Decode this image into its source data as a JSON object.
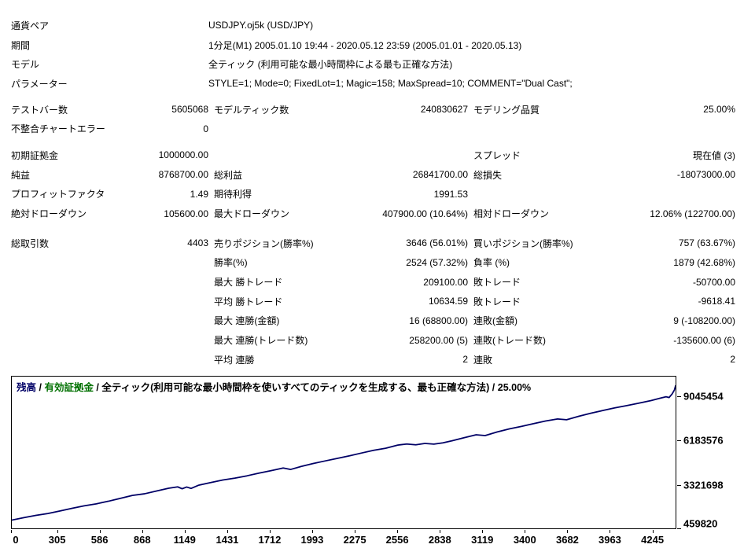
{
  "report": {
    "info_rows": [
      {
        "label": "通貨ペア",
        "value": "USDJPY.oj5k (USD/JPY)"
      },
      {
        "label": "期間",
        "value": "1分足(M1) 2005.01.10 19:44 - 2020.05.12 23:59 (2005.01.01 - 2020.05.13)"
      },
      {
        "label": "モデル",
        "value": "全ティック (利用可能な最小時間枠による最も正確な方法)"
      },
      {
        "label": "パラメーター",
        "value": "STYLE=1; Mode=0; FixedLot=1; Magic=158; MaxSpread=10; COMMENT=\"Dual Cast\";"
      }
    ],
    "sections": [
      {
        "rows": [
          [
            "テストバー数",
            "5605068",
            "モデルティック数",
            "240830627",
            "モデリング品質",
            "25.00%"
          ],
          [
            "不整合チャートエラー",
            "0",
            "",
            "",
            "",
            ""
          ]
        ]
      },
      {
        "rows": [
          [
            "初期証拠金",
            "1000000.00",
            "",
            "",
            "スプレッド",
            "現在値 (3)"
          ],
          [
            "純益",
            "8768700.00",
            "総利益",
            "26841700.00",
            "総損失",
            "-18073000.00"
          ],
          [
            "プロフィットファクタ",
            "1.49",
            "期待利得",
            "1991.53",
            "",
            ""
          ],
          [
            "絶対ドローダウン",
            "105600.00",
            "最大ドローダウン",
            "407900.00 (10.64%)",
            "相対ドローダウン",
            "12.06% (122700.00)"
          ]
        ]
      },
      {
        "rows": [
          [
            "総取引数",
            "4403",
            "売りポジション(勝率%)",
            "3646 (56.01%)",
            "買いポジション(勝率%)",
            "757 (63.67%)"
          ],
          [
            "",
            "",
            "勝率(%)",
            "2524 (57.32%)",
            "負率 (%)",
            "1879 (42.68%)"
          ],
          [
            "",
            "",
            "最大 勝トレード",
            "209100.00",
            "敗トレード",
            "-50700.00"
          ],
          [
            "",
            "",
            "平均 勝トレード",
            "10634.59",
            "敗トレード",
            "-9618.41"
          ],
          [
            "",
            "",
            "最大 連勝(金額)",
            "16 (68800.00)",
            "連敗(金額)",
            "9 (-108200.00)"
          ],
          [
            "",
            "",
            "最大 連勝(トレード数)",
            "258200.00 (5)",
            "連敗(トレード数)",
            "-135600.00 (6)"
          ],
          [
            "",
            "",
            "平均 連勝",
            "2",
            "連敗",
            "2"
          ]
        ]
      }
    ]
  },
  "chart": {
    "legend": {
      "balance_label": "残高",
      "equity_label": "有効証拠金",
      "separator": " / ",
      "description": "全ティック(利用可能な最小時間枠を使いすべてのティックを生成する、最も正確な方法)",
      "quality": "25.00%"
    },
    "colors": {
      "balance_line": "#000066",
      "equity_label": "#007000",
      "border": "#000000"
    }
  },
  "chart_data": {
    "type": "line",
    "title": "残高 / 有効証拠金 / 全ティック(利用可能な最小時間枠を使いすべてのティックを生成する、最も正確な方法) / 25.00%",
    "xlabel": "",
    "ylabel": "",
    "xlim": [
      0,
      4403
    ],
    "ylim": [
      459820,
      10376000
    ],
    "grid": false,
    "legend_position": "top-left",
    "x_ticks": [
      0,
      305,
      586,
      868,
      1149,
      1431,
      1712,
      1993,
      2275,
      2556,
      2838,
      3119,
      3400,
      3682,
      3963,
      4245
    ],
    "y_ticks": [
      9045454,
      6183576,
      3321698,
      459820
    ],
    "series": [
      {
        "name": "残高",
        "color": "#000066",
        "points": [
          [
            0,
            1000000
          ],
          [
            80,
            1160000
          ],
          [
            160,
            1310000
          ],
          [
            240,
            1430000
          ],
          [
            320,
            1600000
          ],
          [
            400,
            1770000
          ],
          [
            480,
            1930000
          ],
          [
            560,
            2060000
          ],
          [
            640,
            2230000
          ],
          [
            720,
            2420000
          ],
          [
            800,
            2610000
          ],
          [
            880,
            2720000
          ],
          [
            960,
            2900000
          ],
          [
            1040,
            3080000
          ],
          [
            1100,
            3170000
          ],
          [
            1130,
            3050000
          ],
          [
            1160,
            3160000
          ],
          [
            1190,
            3070000
          ],
          [
            1240,
            3280000
          ],
          [
            1320,
            3450000
          ],
          [
            1400,
            3620000
          ],
          [
            1480,
            3740000
          ],
          [
            1560,
            3890000
          ],
          [
            1640,
            4070000
          ],
          [
            1720,
            4230000
          ],
          [
            1800,
            4400000
          ],
          [
            1850,
            4310000
          ],
          [
            1920,
            4510000
          ],
          [
            2000,
            4700000
          ],
          [
            2080,
            4870000
          ],
          [
            2160,
            5030000
          ],
          [
            2240,
            5200000
          ],
          [
            2320,
            5380000
          ],
          [
            2400,
            5560000
          ],
          [
            2480,
            5690000
          ],
          [
            2560,
            5900000
          ],
          [
            2620,
            5970000
          ],
          [
            2680,
            5920000
          ],
          [
            2740,
            6010000
          ],
          [
            2800,
            5960000
          ],
          [
            2860,
            6050000
          ],
          [
            2920,
            6180000
          ],
          [
            3000,
            6380000
          ],
          [
            3080,
            6570000
          ],
          [
            3140,
            6520000
          ],
          [
            3220,
            6760000
          ],
          [
            3300,
            6960000
          ],
          [
            3380,
            7120000
          ],
          [
            3460,
            7300000
          ],
          [
            3540,
            7470000
          ],
          [
            3620,
            7610000
          ],
          [
            3680,
            7560000
          ],
          [
            3760,
            7780000
          ],
          [
            3840,
            7980000
          ],
          [
            3920,
            8160000
          ],
          [
            4000,
            8330000
          ],
          [
            4080,
            8480000
          ],
          [
            4160,
            8640000
          ],
          [
            4240,
            8810000
          ],
          [
            4300,
            8960000
          ],
          [
            4340,
            9060000
          ],
          [
            4360,
            9010000
          ],
          [
            4380,
            9240000
          ],
          [
            4395,
            9500000
          ],
          [
            4403,
            9768700
          ]
        ]
      }
    ]
  }
}
